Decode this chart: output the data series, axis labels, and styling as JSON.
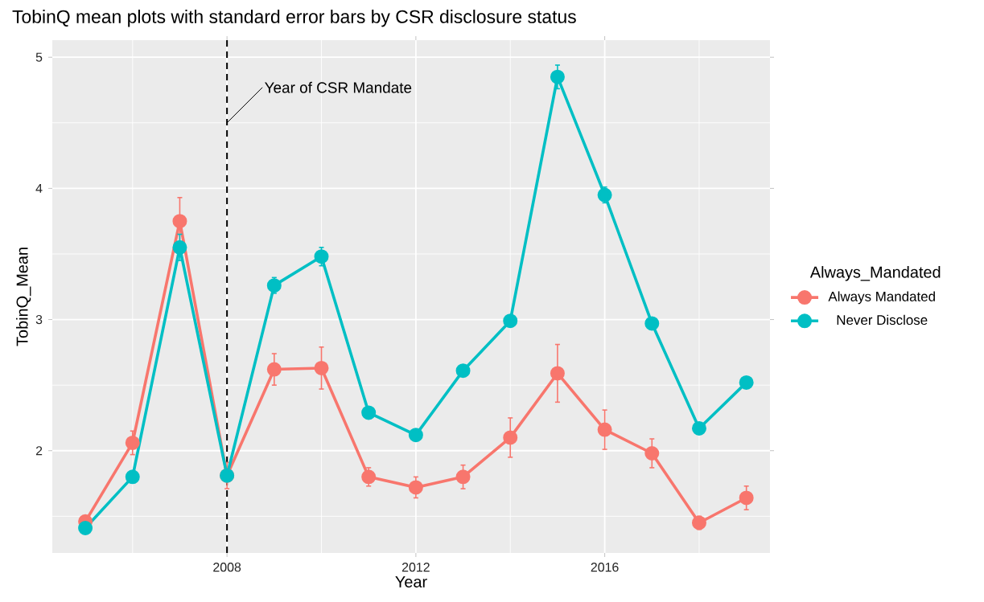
{
  "chart_data": {
    "type": "line",
    "title": "TobinQ mean plots with standard error bars by CSR disclosure status",
    "xlabel": "Year",
    "ylabel": "TobinQ_Mean",
    "legend_title": "Always_Mandated",
    "x": [
      2005,
      2006,
      2007,
      2008,
      2009,
      2010,
      2011,
      2012,
      2013,
      2014,
      2015,
      2016,
      2017,
      2018,
      2019
    ],
    "series": [
      {
        "name": "Always Mandated",
        "color": "#f8766d",
        "values": [
          1.46,
          2.06,
          3.75,
          1.81,
          2.62,
          2.63,
          1.8,
          1.72,
          1.8,
          2.1,
          2.59,
          2.16,
          1.98,
          1.45,
          1.64
        ],
        "errors": [
          0.03,
          0.09,
          0.18,
          0.1,
          0.12,
          0.16,
          0.07,
          0.08,
          0.09,
          0.15,
          0.22,
          0.15,
          0.11,
          0.05,
          0.09
        ]
      },
      {
        "name": "Never Disclose",
        "color": "#00bfc4",
        "values": [
          1.41,
          1.8,
          3.55,
          1.81,
          3.26,
          3.48,
          2.29,
          2.12,
          2.61,
          2.99,
          4.85,
          3.95,
          2.97,
          2.17,
          2.52
        ],
        "errors": [
          null,
          null,
          0.1,
          null,
          0.06,
          0.07,
          null,
          null,
          null,
          null,
          0.09,
          0.06,
          null,
          null,
          null
        ]
      }
    ],
    "xlim": [
      2004.3,
      2019.5
    ],
    "ylim": [
      1.22,
      5.13
    ],
    "xticks": [
      2008,
      2012,
      2016
    ],
    "yticks": [
      2,
      3,
      4,
      5
    ],
    "ref_lines": [
      {
        "axis": "x",
        "value": 2008,
        "color": "#000000",
        "line_style": "dashed"
      }
    ],
    "annotations": [
      {
        "text": "Year of CSR Mandate",
        "x": 2008,
        "y": 4.5
      }
    ],
    "grid": true,
    "legend": "right",
    "marker": "circle",
    "line_style": "solid"
  }
}
